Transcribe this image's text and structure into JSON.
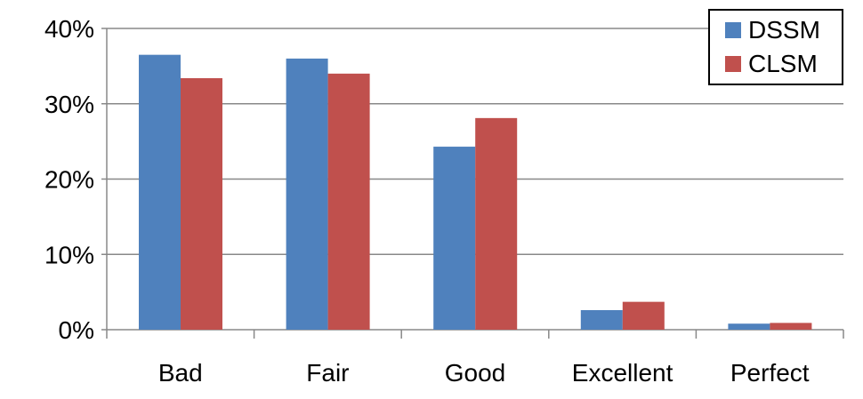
{
  "chart_data": {
    "type": "bar",
    "categories": [
      "Bad",
      "Fair",
      "Good",
      "Excellent",
      "Perfect"
    ],
    "series": [
      {
        "name": "DSSM",
        "values": [
          36.5,
          36.0,
          24.3,
          2.6,
          0.8
        ],
        "color": "#4f81bd"
      },
      {
        "name": "CLSM",
        "values": [
          33.4,
          34.0,
          28.1,
          3.7,
          0.9
        ],
        "color": "#c0504d"
      }
    ],
    "ylim": [
      0,
      40
    ],
    "yticks": [
      0,
      10,
      20,
      30,
      40
    ],
    "ytick_labels": [
      "0%",
      "10%",
      "20%",
      "30%",
      "40%"
    ],
    "grid": true,
    "legend_position": "top-right",
    "title": "",
    "xlabel": "",
    "ylabel": ""
  }
}
